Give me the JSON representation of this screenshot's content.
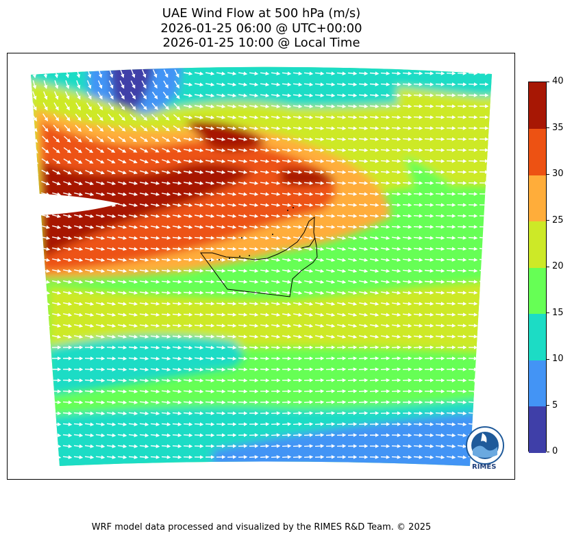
{
  "title": {
    "line1": "UAE Wind Flow at 500 hPa (m/s)",
    "line2": "2026-01-25 06:00 @ UTC+00:00",
    "line3": "2026-01-25 10:00 @ Local Time"
  },
  "colorbar": {
    "levels": [
      0,
      5,
      10,
      15,
      20,
      25,
      30,
      35,
      40
    ],
    "tick_labels": [
      "0",
      "5",
      "10",
      "15",
      "20",
      "25",
      "30",
      "35",
      "40"
    ],
    "colors": [
      "#3f3fa8",
      "#4394f5",
      "#1cdcc5",
      "#66ff55",
      "#cde927",
      "#ffad3a",
      "#ed5213",
      "#a71704"
    ]
  },
  "map": {
    "field": "wind speed (m/s)",
    "vector_color": "#ffffff",
    "boundary_color": "#000000"
  },
  "logo": {
    "text": "RIMES"
  },
  "footer": "WRF model data processed and visualized by the RIMES R&D Team. © 2025"
}
